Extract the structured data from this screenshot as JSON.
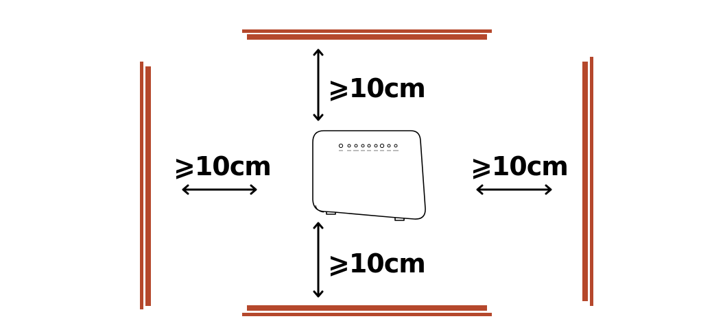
{
  "clearance": {
    "top": "⩾10cm",
    "bottom": "⩾10cm",
    "left": "⩾10cm",
    "right": "⩾10cm"
  },
  "colors": {
    "wall": "#b5482c",
    "stroke": "#000000",
    "background": "#ffffff"
  },
  "icons": {
    "device": "router-icon",
    "arrow": "double-arrow-icon"
  }
}
